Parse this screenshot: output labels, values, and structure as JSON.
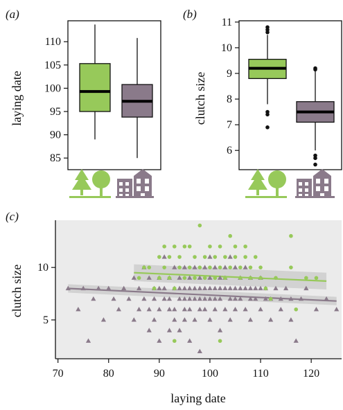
{
  "chart_data": [
    {
      "panel": "(a)",
      "type": "box",
      "ylabel": "laying date",
      "ylim": [
        82.5,
        114.5
      ],
      "yticks": [
        85,
        90,
        95,
        100,
        105,
        110
      ],
      "categories": [
        "rural",
        "urban"
      ],
      "category_icons": [
        "trees-icon",
        "buildings-icon"
      ],
      "boxes": [
        {
          "name": "rural",
          "color": "#97c95a",
          "whisker_low": 89,
          "q1": 95,
          "median": 99.3,
          "q3": 105.3,
          "whisker_high": 113.7,
          "outliers": []
        },
        {
          "name": "urban",
          "color": "#8a7a8a",
          "whisker_low": 85,
          "q1": 93.8,
          "median": 97.2,
          "q3": 100.8,
          "whisker_high": 110.8,
          "outliers": []
        }
      ]
    },
    {
      "panel": "(b)",
      "type": "box",
      "ylabel": "clutch size",
      "ylim": [
        5.25,
        11.05
      ],
      "yticks": [
        6,
        7,
        8,
        9,
        10,
        11
      ],
      "categories": [
        "rural",
        "urban"
      ],
      "category_icons": [
        "trees-icon",
        "buildings-icon"
      ],
      "boxes": [
        {
          "name": "rural",
          "color": "#97c95a",
          "whisker_low": 7.8,
          "q1": 8.8,
          "median": 9.2,
          "q3": 9.55,
          "whisker_high": 10.5,
          "outliers": [
            10.8,
            10.7,
            10.6,
            7.5,
            7.4,
            6.9
          ]
        },
        {
          "name": "urban",
          "color": "#8a7a8a",
          "whisker_low": 6.0,
          "q1": 7.1,
          "median": 7.5,
          "q3": 7.9,
          "whisker_high": 9.2,
          "outliers": [
            9.2,
            9.15,
            5.8,
            5.7,
            5.45
          ]
        }
      ]
    },
    {
      "panel": "(c)",
      "type": "scatter",
      "xlabel": "laying date",
      "ylabel": "clutch size",
      "xlim": [
        69.5,
        126
      ],
      "ylim": [
        1.3,
        14.5
      ],
      "xticks": [
        70,
        80,
        90,
        100,
        110,
        120
      ],
      "yticks": [
        5,
        10
      ],
      "series": [
        {
          "name": "urban",
          "marker": "triangle",
          "color": "#8a7a8a",
          "points": [
            [
              72,
              8
            ],
            [
              74,
              6
            ],
            [
              75,
              8
            ],
            [
              76,
              3
            ],
            [
              77,
              7
            ],
            [
              78,
              8
            ],
            [
              79,
              5
            ],
            [
              80,
              8
            ],
            [
              81,
              7
            ],
            [
              82,
              6
            ],
            [
              83,
              8
            ],
            [
              84,
              7
            ],
            [
              85,
              9
            ],
            [
              85,
              5
            ],
            [
              86,
              8
            ],
            [
              86,
              6
            ],
            [
              87,
              7
            ],
            [
              87,
              10
            ],
            [
              88,
              9
            ],
            [
              88,
              6
            ],
            [
              88,
              4
            ],
            [
              89,
              8
            ],
            [
              89,
              7
            ],
            [
              89,
              5
            ],
            [
              90,
              9
            ],
            [
              90,
              8
            ],
            [
              90,
              6
            ],
            [
              90,
              3
            ],
            [
              91,
              8
            ],
            [
              91,
              7
            ],
            [
              91,
              11
            ],
            [
              92,
              9
            ],
            [
              92,
              7
            ],
            [
              92,
              6
            ],
            [
              92,
              4
            ],
            [
              93,
              10
            ],
            [
              93,
              8
            ],
            [
              93,
              6
            ],
            [
              93,
              5
            ],
            [
              94,
              9
            ],
            [
              94,
              8
            ],
            [
              94,
              7
            ],
            [
              94,
              4
            ],
            [
              95,
              10
            ],
            [
              95,
              8
            ],
            [
              95,
              7
            ],
            [
              95,
              6
            ],
            [
              95,
              5
            ],
            [
              96,
              9
            ],
            [
              96,
              8
            ],
            [
              96,
              7
            ],
            [
              96,
              6
            ],
            [
              96,
              3
            ],
            [
              97,
              10
            ],
            [
              97,
              8
            ],
            [
              97,
              7
            ],
            [
              97,
              5
            ],
            [
              98,
              9
            ],
            [
              98,
              8
            ],
            [
              98,
              7
            ],
            [
              98,
              6
            ],
            [
              98,
              2
            ],
            [
              99,
              10
            ],
            [
              99,
              8
            ],
            [
              99,
              7
            ],
            [
              99,
              6
            ],
            [
              100,
              11
            ],
            [
              100,
              9
            ],
            [
              100,
              8
            ],
            [
              100,
              7
            ],
            [
              100,
              5
            ],
            [
              101,
              10
            ],
            [
              101,
              8
            ],
            [
              101,
              7
            ],
            [
              101,
              6
            ],
            [
              102,
              9
            ],
            [
              102,
              8
            ],
            [
              102,
              7
            ],
            [
              102,
              4
            ],
            [
              103,
              10
            ],
            [
              103,
              9
            ],
            [
              103,
              8
            ],
            [
              103,
              6
            ],
            [
              104,
              11
            ],
            [
              104,
              8
            ],
            [
              104,
              7
            ],
            [
              104,
              5
            ],
            [
              105,
              10
            ],
            [
              105,
              8
            ],
            [
              105,
              7
            ],
            [
              105,
              6
            ],
            [
              106,
              9
            ],
            [
              106,
              8
            ],
            [
              106,
              7
            ],
            [
              107,
              10
            ],
            [
              107,
              8
            ],
            [
              107,
              6
            ],
            [
              108,
              9
            ],
            [
              108,
              8
            ],
            [
              108,
              7
            ],
            [
              108,
              5
            ],
            [
              109,
              8
            ],
            [
              109,
              7
            ],
            [
              110,
              9
            ],
            [
              110,
              8
            ],
            [
              110,
              6
            ],
            [
              111,
              8
            ],
            [
              111,
              7
            ],
            [
              112,
              7
            ],
            [
              112,
              5
            ],
            [
              113,
              8
            ],
            [
              114,
              7
            ],
            [
              114,
              6
            ],
            [
              115,
              8
            ],
            [
              116,
              7
            ],
            [
              116,
              5
            ],
            [
              117,
              3
            ],
            [
              118,
              7
            ],
            [
              119,
              8
            ],
            [
              121,
              6
            ],
            [
              123,
              7
            ],
            [
              125,
              6
            ]
          ],
          "trend": {
            "x": [
              72,
              125
            ],
            "y": [
              8.0,
              6.8
            ],
            "ci_width": 0.4
          }
        },
        {
          "name": "rural",
          "marker": "circle",
          "color": "#97c95a",
          "points": [
            [
              86,
              9
            ],
            [
              87,
              10
            ],
            [
              88,
              10
            ],
            [
              89,
              8
            ],
            [
              90,
              9
            ],
            [
              90,
              11
            ],
            [
              91,
              10
            ],
            [
              91,
              12
            ],
            [
              92,
              9
            ],
            [
              92,
              11
            ],
            [
              93,
              12
            ],
            [
              93,
              3
            ],
            [
              93,
              8
            ],
            [
              94,
              10
            ],
            [
              94,
              11
            ],
            [
              95,
              9
            ],
            [
              95,
              12
            ],
            [
              96,
              12
            ],
            [
              96,
              10
            ],
            [
              97,
              11
            ],
            [
              97,
              9
            ],
            [
              98,
              14
            ],
            [
              98,
              10
            ],
            [
              99,
              11
            ],
            [
              99,
              9
            ],
            [
              100,
              12
            ],
            [
              100,
              10
            ],
            [
              101,
              11
            ],
            [
              101,
              9
            ],
            [
              102,
              12
            ],
            [
              102,
              3
            ],
            [
              102,
              10
            ],
            [
              103,
              11
            ],
            [
              103,
              9
            ],
            [
              104,
              13
            ],
            [
              104,
              10
            ],
            [
              105,
              12
            ],
            [
              105,
              11
            ],
            [
              106,
              10
            ],
            [
              106,
              9
            ],
            [
              107,
              11
            ],
            [
              107,
              12
            ],
            [
              108,
              10
            ],
            [
              108,
              9
            ],
            [
              109,
              11
            ],
            [
              110,
              10
            ],
            [
              110,
              9
            ],
            [
              111,
              8
            ],
            [
              112,
              7
            ],
            [
              113,
              9
            ],
            [
              116,
              13
            ],
            [
              116,
              10
            ],
            [
              117,
              6
            ],
            [
              119,
              9
            ],
            [
              121,
              9
            ]
          ],
          "trend": {
            "x": [
              85,
              123
            ],
            "y": [
              9.5,
              8.7
            ],
            "ci_width": 0.8
          }
        }
      ]
    }
  ]
}
